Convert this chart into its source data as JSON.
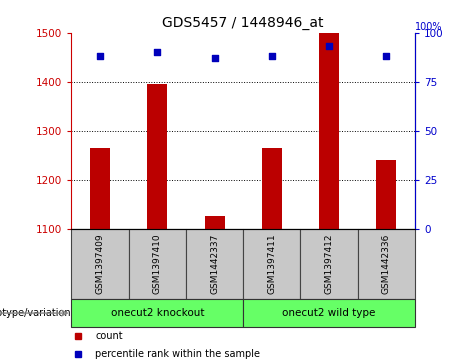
{
  "title": "GDS5457 / 1448946_at",
  "samples": [
    "GSM1397409",
    "GSM1397410",
    "GSM1442337",
    "GSM1397411",
    "GSM1397412",
    "GSM1442336"
  ],
  "counts": [
    1265,
    1395,
    1125,
    1265,
    1500,
    1240
  ],
  "percentiles": [
    88,
    90,
    87,
    88,
    93,
    88
  ],
  "ylim_left": [
    1100,
    1500
  ],
  "ylim_right": [
    0,
    100
  ],
  "yticks_left": [
    1100,
    1200,
    1300,
    1400,
    1500
  ],
  "yticks_right": [
    0,
    25,
    50,
    75,
    100
  ],
  "bar_color": "#bb0000",
  "dot_color": "#0000bb",
  "groups": [
    {
      "label": "onecut2 knockout",
      "start": 0,
      "end": 2
    },
    {
      "label": "onecut2 wild type",
      "start": 3,
      "end": 5
    }
  ],
  "xlabel_area_color": "#c8c8c8",
  "group_box_color": "#66ff66",
  "legend_items": [
    {
      "label": "count",
      "color": "#bb0000"
    },
    {
      "label": "percentile rank within the sample",
      "color": "#0000bb"
    }
  ],
  "genotype_label": "genotype/variation",
  "left_label_color": "#cc0000",
  "right_label_color": "#0000cc"
}
